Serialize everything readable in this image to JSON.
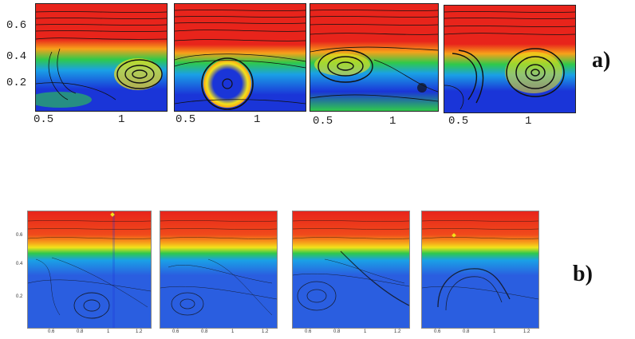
{
  "figure": {
    "row_a": {
      "label": "a)",
      "y_ticks": [
        "0.6",
        "0.4",
        "0.2"
      ],
      "panels": [
        {
          "x_ticks": [
            "0.5",
            "1"
          ]
        },
        {
          "x_ticks": [
            "0.5",
            "1"
          ]
        },
        {
          "x_ticks": [
            "0.5",
            "1"
          ]
        },
        {
          "x_ticks": [
            "0.5",
            "1"
          ]
        }
      ]
    },
    "row_b": {
      "label": "b)",
      "y_ticks": [
        "0.6",
        "0.4",
        "0.2"
      ],
      "panels": [
        {
          "x_ticks": [
            "0.6",
            "0.8",
            "1",
            "1.2"
          ]
        },
        {
          "x_ticks": [
            "0.6",
            "0.8",
            "1",
            "1.2"
          ]
        },
        {
          "x_ticks": [
            "0.6",
            "0.8",
            "1",
            "1.2"
          ]
        },
        {
          "x_ticks": [
            "0.6",
            "0.8",
            "1",
            "1.2"
          ]
        }
      ]
    },
    "colors": {
      "high": "#e8241b",
      "mid_high": "#f7a21a",
      "mid": "#f2e21a",
      "mid_low": "#2fc94b",
      "low_mid": "#1aa0e6",
      "low": "#1a35d8",
      "streamline": "#111111"
    }
  }
}
